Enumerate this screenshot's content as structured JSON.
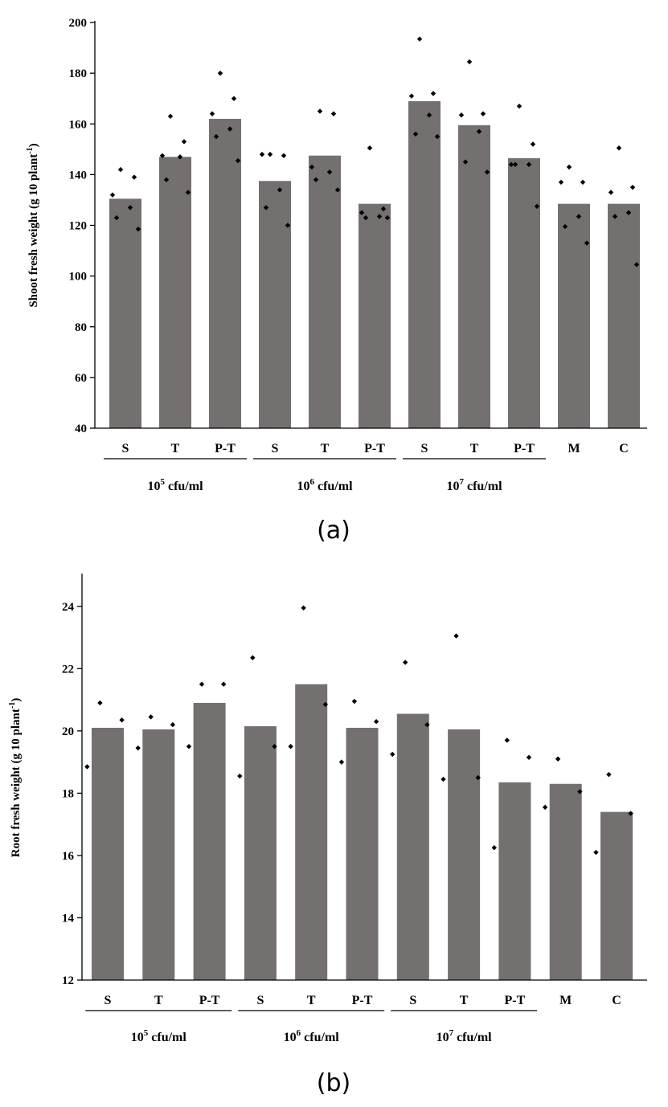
{
  "chart_data": [
    {
      "type": "bar",
      "panel_label": "(a)",
      "ylabel_main": "Shoot fresh weight (g 10 plant",
      "ylabel_sup": "-1",
      "ylabel_close": ")",
      "ylim": [
        40,
        200
      ],
      "yticks": [
        40,
        60,
        80,
        100,
        120,
        140,
        160,
        180,
        200
      ],
      "grid": false,
      "bar_color": "#757070",
      "point_color": "#000000",
      "categories": [
        "S",
        "T",
        "P-T",
        "S",
        "T",
        "P-T",
        "S",
        "T",
        "P-T",
        "M",
        "C"
      ],
      "values": [
        130.5,
        147,
        162,
        137.5,
        147.5,
        128.5,
        169,
        159.5,
        146.5,
        128.5,
        128.5
      ],
      "points": [
        [
          142,
          139,
          132,
          127,
          123,
          118.5
        ],
        [
          163,
          153,
          147.5,
          147,
          138,
          133
        ],
        [
          180,
          170,
          164,
          158,
          155,
          145.5
        ],
        [
          148,
          147.5,
          148,
          134,
          127,
          120
        ],
        [
          165,
          164,
          143,
          141,
          138,
          134
        ],
        [
          150.5,
          126.5,
          125,
          123.5,
          123,
          123
        ],
        [
          193.5,
          172,
          171,
          163.5,
          156,
          155
        ],
        [
          184.5,
          164,
          163.5,
          157,
          145,
          141
        ],
        [
          167,
          152,
          144,
          144,
          144,
          127.5
        ],
        [
          143,
          137,
          137,
          123.5,
          119.5,
          113
        ],
        [
          150.5,
          135,
          133,
          125,
          123.5,
          104.5
        ]
      ],
      "groups": [
        {
          "base": "10",
          "exp": "5",
          "unit": " cfu/ml",
          "start": 0,
          "end": 2
        },
        {
          "base": "10",
          "exp": "6",
          "unit": " cfu/ml",
          "start": 3,
          "end": 5
        },
        {
          "base": "10",
          "exp": "7",
          "unit": " cfu/ml",
          "start": 6,
          "end": 8
        }
      ]
    },
    {
      "type": "bar",
      "panel_label": "(b)",
      "ylabel_main": "Root fresh weight (g 10 plant",
      "ylabel_sup": "-1",
      "ylabel_close": ")",
      "ylim": [
        12,
        25
      ],
      "yticks": [
        12,
        14,
        16,
        18,
        20,
        22,
        24
      ],
      "grid": false,
      "bar_color": "#757070",
      "point_color": "#000000",
      "categories": [
        "S",
        "T",
        "P-T",
        "S",
        "T",
        "P-T",
        "S",
        "T",
        "P-T",
        "M",
        "C"
      ],
      "values": [
        20.1,
        20.05,
        20.9,
        20.15,
        21.5,
        20.1,
        20.55,
        20.05,
        18.35,
        18.3,
        17.4
      ],
      "points": [
        [
          20.9,
          20.35,
          18.85
        ],
        [
          20.45,
          20.2,
          19.45
        ],
        [
          21.5,
          21.5,
          19.5
        ],
        [
          22.35,
          19.5,
          18.55
        ],
        [
          23.95,
          20.85,
          19.5
        ],
        [
          20.95,
          20.3,
          19.0
        ],
        [
          22.2,
          20.2,
          19.25
        ],
        [
          23.05,
          18.5,
          18.45
        ],
        [
          19.7,
          19.15,
          16.25
        ],
        [
          19.1,
          18.05,
          17.55
        ],
        [
          18.6,
          17.35,
          16.1
        ]
      ],
      "groups": [
        {
          "base": "10",
          "exp": "5",
          "unit": " cfu/ml",
          "start": 0,
          "end": 2
        },
        {
          "base": "10",
          "exp": "6",
          "unit": " cfu/ml",
          "start": 3,
          "end": 5
        },
        {
          "base": "10",
          "exp": "7",
          "unit": " cfu/ml",
          "start": 6,
          "end": 8
        }
      ]
    }
  ]
}
